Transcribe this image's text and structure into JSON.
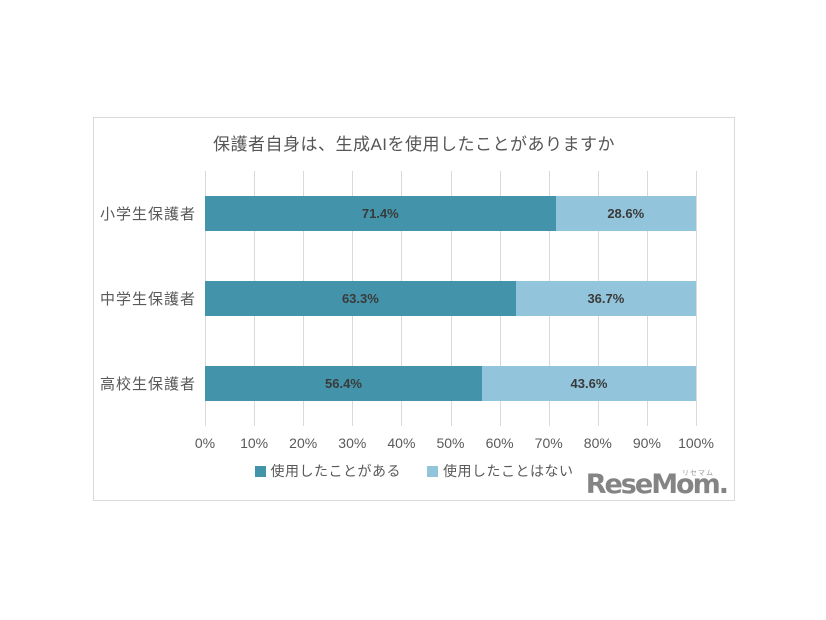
{
  "chart_data": {
    "type": "bar",
    "orientation": "horizontal",
    "stacked": true,
    "title": "保護者自身は、生成AIを使用したことがありますか",
    "categories": [
      "小学生保護者",
      "中学生保護者",
      "高校生保護者"
    ],
    "series": [
      {
        "name": "使用したことがある",
        "color": "#4394aa",
        "values": [
          71.4,
          63.3,
          56.4
        ]
      },
      {
        "name": "使用したことはない",
        "color": "#92c5db",
        "values": [
          28.6,
          36.7,
          43.6
        ]
      }
    ],
    "value_labels": [
      [
        "71.4%",
        "28.6%"
      ],
      [
        "63.3%",
        "36.7%"
      ],
      [
        "56.4%",
        "43.6%"
      ]
    ],
    "x_axis": {
      "min": 0,
      "max": 100,
      "ticks": [
        "0%",
        "10%",
        "20%",
        "30%",
        "40%",
        "50%",
        "60%",
        "70%",
        "80%",
        "90%",
        "100%"
      ]
    },
    "grid": true,
    "legend_position": "bottom",
    "colors": {
      "grid": "#d9d9d9",
      "border": "#d9d9d9",
      "title_text": "#565656",
      "label_text": "#595959",
      "value_text": "#3a3a3a"
    }
  },
  "branding": {
    "logo_text": "ReseMom.",
    "logo_ruby": "リセマム",
    "logo_color": "#848484"
  }
}
